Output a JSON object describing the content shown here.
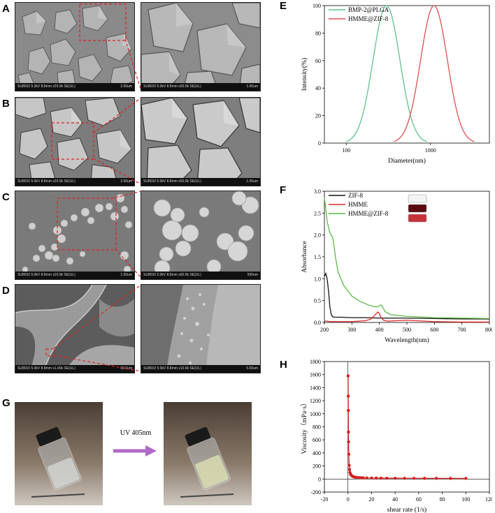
{
  "panels": {
    "A": {
      "label": "A",
      "left": {
        "caption": "SU8010 5.0kV 8.8mm x20.0k SE(UL)",
        "scale": "2.00um"
      },
      "right": {
        "caption": "SU8010 5.0kV 8.8mm x50.0k SE(UL)",
        "scale": "1.00um"
      }
    },
    "B": {
      "label": "B",
      "left": {
        "caption": "SU8010 5.0kV 8.8mm x20.0k SE(UL)",
        "scale": "2.00um"
      },
      "right": {
        "caption": "SU8010 5.0kV 8.8mm x50.0k SE(UL)",
        "scale": "1.00um"
      }
    },
    "C": {
      "label": "C",
      "left": {
        "caption": "SU8010 5.0kV 8.8mm x20.0k SE(UL)",
        "scale": "1.00um"
      },
      "right": {
        "caption": "SU8010 5.0kV 8.8mm x60.0k SE(UL)",
        "scale": "500nm"
      }
    },
    "D": {
      "label": "D",
      "left": {
        "caption": "SU8010 5.0kV 8.8mm x1.00k SE(UL)",
        "scale": "50.0um"
      },
      "right": {
        "caption": "SU8010 5.0kV 8.8mm x10.0k SE(UL)",
        "scale": "5.00um"
      }
    },
    "G": {
      "label": "G",
      "arrow_label": "UV 405nm"
    },
    "E": {
      "label": "E"
    },
    "F": {
      "label": "F"
    },
    "H": {
      "label": "H"
    }
  },
  "chart_data": [
    {
      "panel": "E",
      "type": "line",
      "xlabel": "Diameter(nm)",
      "ylabel": "Intensity(%)",
      "xscale": "log",
      "xlim": [
        55,
        5000
      ],
      "ylim": [
        0,
        100
      ],
      "xticks": [
        100,
        1000
      ],
      "xticklabels": [
        "100",
        "1000"
      ],
      "yticks": [
        0,
        20,
        40,
        60,
        80,
        100
      ],
      "yticklabels": [
        "0",
        "20",
        "40",
        "60",
        "80",
        "100"
      ],
      "legend": "top-left",
      "series": [
        {
          "name": "BMP-2@PLGA",
          "color": "#5ec28e",
          "shape": "lognormal",
          "peak_x": 300,
          "peak_y": 100,
          "from": 100,
          "to": 900
        },
        {
          "name": "HMME@ZIF-8",
          "color": "#e05050",
          "shape": "lognormal",
          "peak_x": 1100,
          "peak_y": 100,
          "from": 370,
          "to": 3300
        }
      ]
    },
    {
      "panel": "F",
      "type": "line",
      "xlabel": "Wavelength(nm)",
      "ylabel": "Absorbance",
      "xlim": [
        200,
        800
      ],
      "ylim": [
        0,
        3.0
      ],
      "xticks": [
        200,
        300,
        400,
        500,
        600,
        700,
        800
      ],
      "yticks": [
        0,
        0.5,
        1.0,
        1.5,
        2.0,
        2.5,
        3.0
      ],
      "yticklabels": [
        "0.0",
        "0.5",
        "1.0",
        "1.5",
        "2.0",
        "2.5",
        "3.0"
      ],
      "legend": "top-left",
      "series": [
        {
          "name": "ZIF-8",
          "color": "#111111",
          "x": [
            200,
            205,
            210,
            215,
            220,
            225,
            230,
            240,
            260,
            300,
            350,
            400,
            450,
            500,
            600,
            700,
            800
          ],
          "y": [
            1.05,
            1.12,
            1.0,
            0.72,
            0.35,
            0.18,
            0.13,
            0.12,
            0.12,
            0.11,
            0.11,
            0.1,
            0.1,
            0.1,
            0.09,
            0.08,
            0.08
          ]
        },
        {
          "name": "HMME",
          "color": "#e02828",
          "x": [
            200,
            210,
            220,
            230,
            250,
            300,
            350,
            370,
            385,
            395,
            400,
            405,
            415,
            430,
            460,
            500,
            600,
            700,
            800
          ],
          "y": [
            0.03,
            0.03,
            0.02,
            0.02,
            0.02,
            0.02,
            0.04,
            0.08,
            0.18,
            0.24,
            0.2,
            0.12,
            0.05,
            0.03,
            0.04,
            0.05,
            0.02,
            0.01,
            0.01
          ]
        },
        {
          "name": "HMME@ZIF-8",
          "color": "#5bb845",
          "x": [
            200,
            205,
            210,
            220,
            230,
            235,
            240,
            250,
            270,
            300,
            330,
            360,
            380,
            395,
            400,
            405,
            410,
            420,
            440,
            500,
            600,
            700,
            800
          ],
          "y": [
            2.85,
            2.6,
            2.3,
            2.05,
            1.95,
            1.75,
            1.5,
            1.15,
            0.85,
            0.6,
            0.48,
            0.4,
            0.36,
            0.36,
            0.38,
            0.4,
            0.38,
            0.25,
            0.18,
            0.14,
            0.11,
            0.1,
            0.09
          ]
        }
      ]
    },
    {
      "panel": "H",
      "type": "scatter",
      "xlabel": "shear rate (1/s)",
      "ylabel": "Viscosity（mPa·s）",
      "xlim": [
        -20,
        120
      ],
      "ylim": [
        -200,
        1800
      ],
      "xticks": [
        -20,
        0,
        20,
        40,
        60,
        80,
        100,
        120
      ],
      "yticks": [
        -200,
        0,
        200,
        400,
        600,
        800,
        1000,
        1200,
        1400,
        1600,
        1800
      ],
      "series": [
        {
          "name": "",
          "color": "#d42020",
          "x": [
            0.1,
            0.2,
            0.3,
            0.4,
            0.5,
            0.7,
            1,
            1.3,
            1.7,
            2.2,
            2.8,
            3.5,
            4.5,
            5.5,
            7,
            9,
            11,
            13,
            16,
            20,
            24,
            28,
            33,
            40,
            48,
            56,
            65,
            75,
            87,
            100
          ],
          "y": [
            1580,
            1270,
            1050,
            720,
            570,
            380,
            210,
            145,
            100,
            75,
            58,
            45,
            36,
            30,
            26,
            22,
            20,
            18,
            16,
            15,
            14,
            13,
            12,
            12,
            11,
            11,
            10,
            10,
            9,
            9
          ]
        }
      ]
    }
  ]
}
